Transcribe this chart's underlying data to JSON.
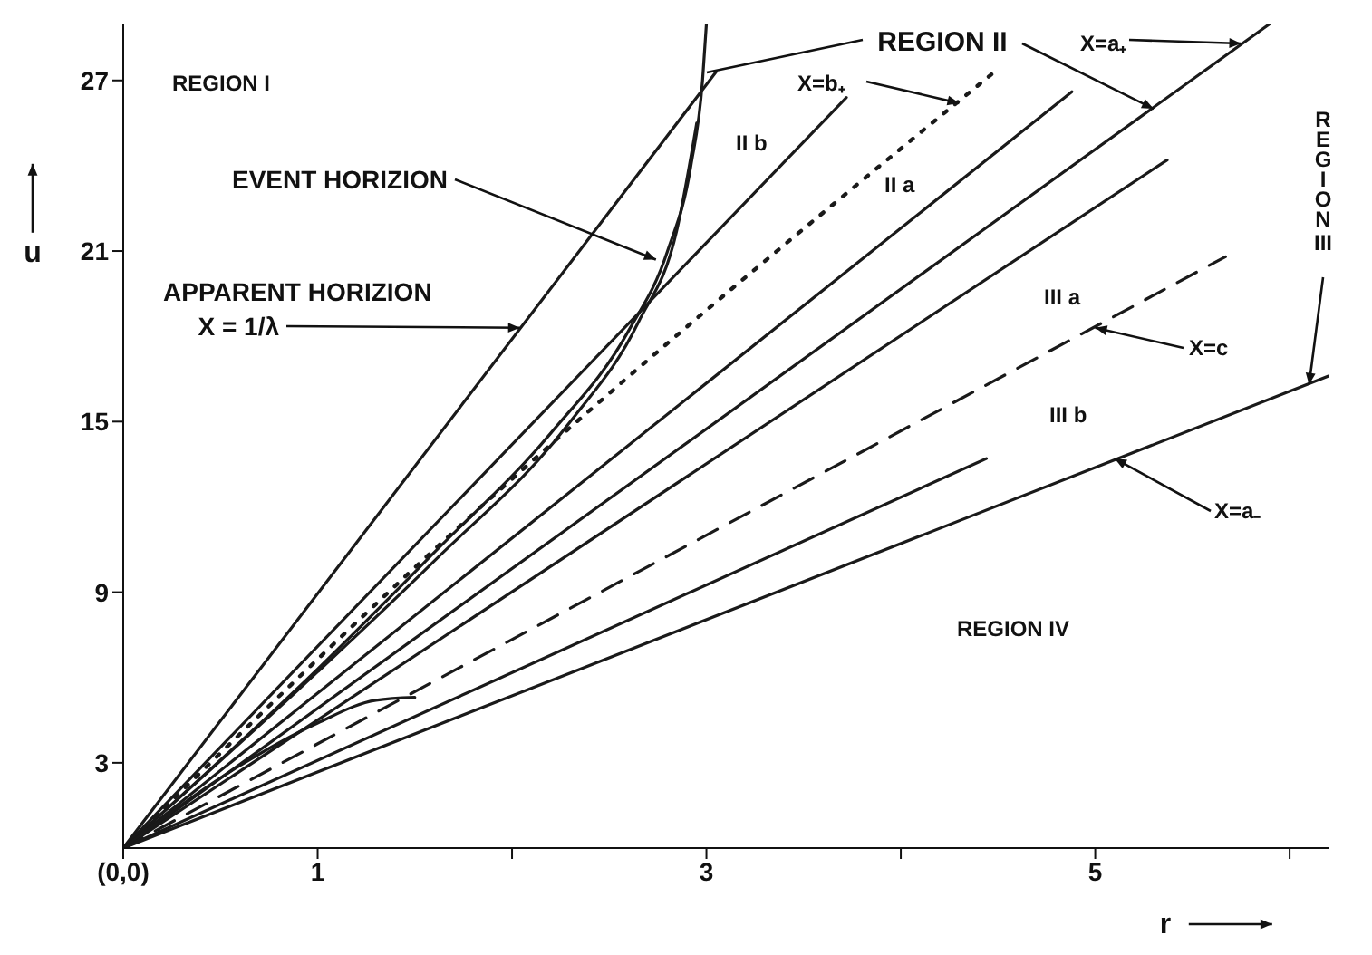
{
  "chart_data": {
    "type": "line",
    "xlabel": "r",
    "ylabel": "u",
    "xlim": [
      0,
      6.2
    ],
    "ylim": [
      0,
      29
    ],
    "xticks": [
      {
        "value": 0,
        "label": "(0,0)"
      },
      1,
      {
        "value": 2,
        "label": null
      },
      3,
      {
        "value": 4,
        "label": null
      },
      5,
      {
        "value": 6,
        "label": null
      }
    ],
    "yticks": [
      3,
      9,
      15,
      21,
      27
    ],
    "line_style": "solid",
    "series": [
      {
        "color": "#1a1a1a",
        "x": [
          0,
          3.05
        ],
        "values": [
          0,
          27.3
        ]
      },
      {
        "color": "#1a1a1a",
        "x": [
          0,
          1,
          1.6,
          2.2,
          2.6,
          2.8,
          2.92,
          2.98,
          3.0
        ],
        "values": [
          0,
          6.3,
          10.4,
          14.6,
          18.2,
          21,
          24,
          27,
          29
        ]
      },
      {
        "color": "#1a1a1a",
        "x": [
          0,
          1,
          1.6,
          2.3,
          2.65,
          2.85,
          2.95
        ],
        "values": [
          0,
          6.2,
          10.1,
          15,
          18.5,
          21.8,
          25.5
        ]
      },
      {
        "color": "#1a1a1a",
        "x": [
          0,
          3.72
        ],
        "values": [
          0,
          26.4
        ]
      },
      {
        "color": "#1a1a1a",
        "line_style": "dotted",
        "x": [
          0,
          1.6,
          4.5
        ],
        "values": [
          0,
          10.5,
          27.4
        ]
      },
      {
        "color": "#1a1a1a",
        "x": [
          0,
          4.88
        ],
        "values": [
          0,
          26.6
        ]
      },
      {
        "color": "#1a1a1a",
        "x": [
          0,
          5.9
        ],
        "values": [
          0,
          29
        ]
      },
      {
        "color": "#1a1a1a",
        "x": [
          0,
          5.37
        ],
        "values": [
          0,
          24.2
        ]
      },
      {
        "color": "#1a1a1a",
        "x": [
          0,
          0.6,
          1,
          1.3,
          1.5
        ],
        "values": [
          0,
          2.9,
          4.4,
          5.2,
          5.3
        ]
      },
      {
        "color": "#1a1a1a",
        "line_style": "dashed",
        "x": [
          0,
          5.67
        ],
        "values": [
          0,
          20.8
        ]
      },
      {
        "color": "#1a1a1a",
        "x": [
          0,
          4.44
        ],
        "values": [
          0,
          13.7
        ]
      },
      {
        "color": "#1a1a1a",
        "x": [
          0,
          6.2
        ],
        "values": [
          0,
          16.6
        ]
      }
    ],
    "annotations": [
      "REGION I",
      {
        "text": "EVENT HORIZION",
        "x": 2.74,
        "y": 20.7
      },
      "APPARENT HORIZION",
      {
        "text": "X = 1/λ",
        "x": 2.04,
        "y": 18.3
      },
      {
        "text": "REGION II",
        "x": 5.3,
        "y": 26.0
      },
      {
        "text": "X=b₊",
        "x": 4.3,
        "y": 26.2
      },
      {
        "text": "X=a₊",
        "x": 5.75,
        "y": 28.3
      },
      "II b",
      "II a",
      "III a",
      {
        "text": "X=c",
        "x": 5.0,
        "y": 18.3
      },
      "III b",
      {
        "text": "X=a₋",
        "x": 5.1,
        "y": 13.7
      },
      "REGION IV",
      {
        "text": "REGION III",
        "x": 6.1,
        "y": 16.3
      }
    ]
  }
}
